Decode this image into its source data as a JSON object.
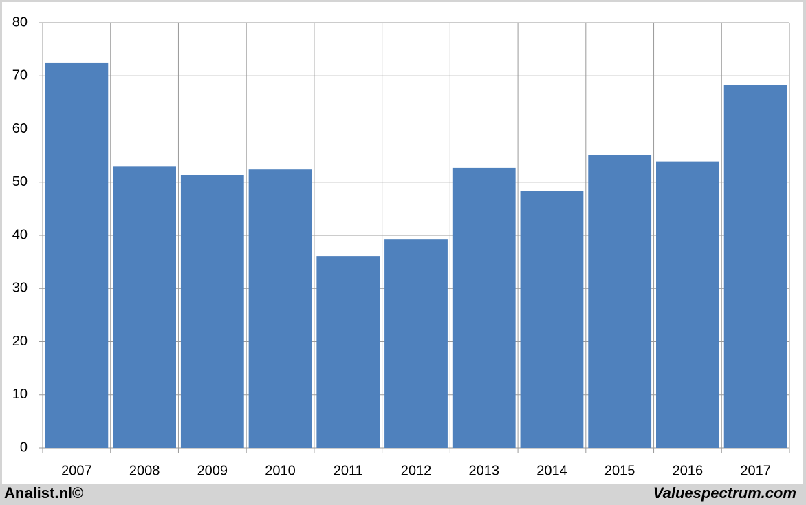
{
  "chart_data": {
    "type": "bar",
    "categories": [
      "2007",
      "2008",
      "2009",
      "2010",
      "2011",
      "2012",
      "2013",
      "2014",
      "2015",
      "2016",
      "2017"
    ],
    "values": [
      72.5,
      52.9,
      51.3,
      52.4,
      36.1,
      39.2,
      52.7,
      48.3,
      55.1,
      53.9,
      68.3
    ],
    "color": "#4f81bd",
    "ylim": [
      0,
      80
    ],
    "yticks": [
      0,
      10,
      20,
      30,
      40,
      50,
      60,
      70,
      80
    ],
    "grid": true
  },
  "footer": {
    "left": "Analist.nl©",
    "right": "Valuespectrum.com"
  }
}
